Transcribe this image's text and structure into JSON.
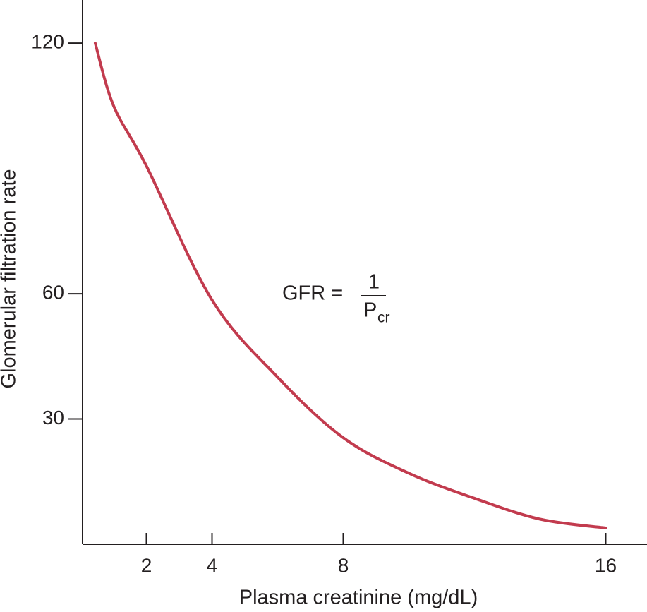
{
  "chart_data": {
    "type": "line",
    "x_label": "Plasma creatinine (mg/dL)",
    "y_label": "Glomerular filtration rate",
    "annotation": {
      "lhs": "GFR =",
      "numerator": "1",
      "denominator": "P",
      "subscript": "cr"
    },
    "x": [
      0.44,
      1,
      2,
      4,
      6,
      8,
      10,
      12,
      14,
      16
    ],
    "series": [
      {
        "name": "GFR",
        "color": "#c23b4e",
        "values": [
          120,
          105,
          90.6,
          58.5,
          40,
          25.5,
          17,
          11,
          6,
          3.9
        ]
      }
    ],
    "xlim": [
      0,
      17.25
    ],
    "xticks": [
      2,
      4,
      8,
      16
    ],
    "ylim": [
      0,
      130
    ],
    "yticks": [
      30,
      60,
      120
    ]
  }
}
